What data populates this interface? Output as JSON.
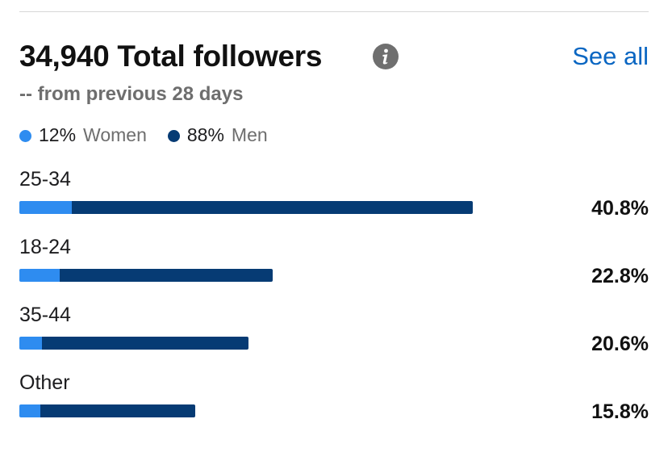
{
  "header": {
    "title": "34,940 Total followers",
    "info_icon": "info-icon",
    "see_all_label": "See all",
    "subtitle": "-- from previous 28 days"
  },
  "colors": {
    "women": "#2e8cf0",
    "men": "#063b74",
    "link": "#0a66c2"
  },
  "legend": [
    {
      "pct": "12%",
      "label": "Women",
      "color_key": "women"
    },
    {
      "pct": "88%",
      "label": "Men",
      "color_key": "men"
    }
  ],
  "age_groups": [
    {
      "label": "25-34",
      "pct_text": "40.8%",
      "value": 40.8,
      "women_share": 0.116
    },
    {
      "label": "18-24",
      "pct_text": "22.8%",
      "value": 22.8,
      "women_share": 0.16
    },
    {
      "label": "35-44",
      "pct_text": "20.6%",
      "value": 20.6,
      "women_share": 0.098
    },
    {
      "label": "Other",
      "pct_text": "15.8%",
      "value": 15.8,
      "women_share": 0.12
    }
  ]
}
